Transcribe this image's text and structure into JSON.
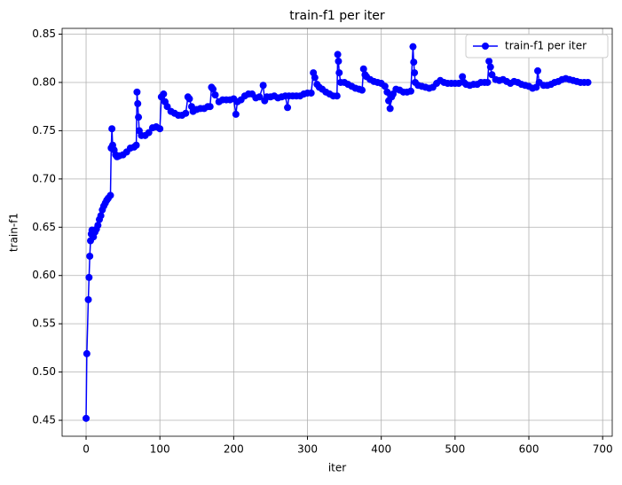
{
  "chart_data": {
    "type": "line",
    "title": "train-f1 per iter",
    "x_label": "iter",
    "y_label": "train-f1",
    "grid": true,
    "legend": "upper right",
    "xlim": [
      -32.5,
      713
    ],
    "ylim": [
      0.4335,
      0.856
    ],
    "xticks": [
      0,
      100,
      200,
      300,
      400,
      500,
      600,
      700
    ],
    "yticks": [
      0.45,
      {
        "value": 0.5,
        "label": "0.50"
      },
      0.55,
      {
        "value": 0.6,
        "label": "0.60"
      },
      0.65,
      {
        "value": 0.7,
        "label": "0.70"
      },
      0.75,
      {
        "value": 0.8,
        "label": "0.80"
      },
      0.85
    ],
    "x": [
      0,
      1,
      3,
      4,
      5,
      6,
      7,
      8,
      10,
      12,
      14,
      16,
      18,
      20,
      22,
      24,
      26,
      28,
      30,
      33,
      34,
      35,
      36,
      38,
      40,
      42,
      45,
      50,
      55,
      60,
      65,
      68,
      69,
      70,
      71,
      72,
      75,
      80,
      85,
      90,
      95,
      100,
      102,
      105,
      107,
      110,
      115,
      120,
      125,
      130,
      135,
      138,
      140,
      143,
      145,
      150,
      155,
      160,
      165,
      168,
      170,
      172,
      175,
      180,
      185,
      190,
      195,
      200,
      203,
      205,
      210,
      215,
      220,
      225,
      230,
      235,
      240,
      242,
      245,
      250,
      255,
      260,
      265,
      270,
      273,
      275,
      280,
      285,
      290,
      295,
      300,
      305,
      308,
      310,
      313,
      316,
      320,
      325,
      330,
      335,
      340,
      341,
      342,
      343,
      345,
      350,
      355,
      360,
      365,
      370,
      374,
      376,
      378,
      380,
      385,
      390,
      395,
      400,
      405,
      408,
      410,
      412,
      414,
      416,
      420,
      425,
      430,
      435,
      440,
      443,
      444,
      445,
      446,
      450,
      455,
      460,
      465,
      470,
      475,
      480,
      485,
      490,
      495,
      500,
      505,
      510,
      512,
      515,
      520,
      525,
      530,
      535,
      540,
      544,
      546,
      548,
      550,
      555,
      560,
      565,
      570,
      575,
      580,
      585,
      590,
      595,
      600,
      605,
      610,
      612,
      614,
      620,
      625,
      630,
      635,
      640,
      645,
      650,
      655,
      660,
      665,
      670,
      675,
      680
    ],
    "series": [
      {
        "name": "train-f1 per iter",
        "color": "#0000ff",
        "values": [
          0.452,
          0.519,
          0.575,
          0.598,
          0.62,
          0.636,
          0.643,
          0.647,
          0.64,
          0.645,
          0.648,
          0.652,
          0.658,
          0.662,
          0.668,
          0.672,
          0.675,
          0.678,
          0.68,
          0.683,
          0.732,
          0.752,
          0.735,
          0.73,
          0.725,
          0.723,
          0.724,
          0.725,
          0.728,
          0.732,
          0.733,
          0.735,
          0.79,
          0.778,
          0.764,
          0.75,
          0.745,
          0.745,
          0.748,
          0.753,
          0.754,
          0.752,
          0.785,
          0.788,
          0.78,
          0.775,
          0.77,
          0.768,
          0.766,
          0.766,
          0.768,
          0.785,
          0.783,
          0.775,
          0.77,
          0.772,
          0.773,
          0.773,
          0.775,
          0.775,
          0.795,
          0.793,
          0.787,
          0.78,
          0.782,
          0.782,
          0.782,
          0.783,
          0.767,
          0.78,
          0.782,
          0.786,
          0.788,
          0.788,
          0.784,
          0.785,
          0.797,
          0.781,
          0.785,
          0.785,
          0.786,
          0.784,
          0.785,
          0.786,
          0.774,
          0.786,
          0.786,
          0.786,
          0.786,
          0.788,
          0.789,
          0.789,
          0.81,
          0.805,
          0.798,
          0.795,
          0.793,
          0.79,
          0.788,
          0.786,
          0.786,
          0.829,
          0.822,
          0.81,
          0.8,
          0.8,
          0.798,
          0.796,
          0.794,
          0.793,
          0.792,
          0.814,
          0.808,
          0.806,
          0.803,
          0.801,
          0.8,
          0.799,
          0.796,
          0.79,
          0.781,
          0.773,
          0.785,
          0.788,
          0.793,
          0.792,
          0.79,
          0.79,
          0.791,
          0.837,
          0.821,
          0.81,
          0.8,
          0.797,
          0.796,
          0.795,
          0.794,
          0.795,
          0.799,
          0.802,
          0.8,
          0.799,
          0.799,
          0.799,
          0.799,
          0.806,
          0.8,
          0.798,
          0.797,
          0.798,
          0.798,
          0.8,
          0.8,
          0.8,
          0.822,
          0.816,
          0.808,
          0.803,
          0.802,
          0.803,
          0.801,
          0.799,
          0.801,
          0.8,
          0.798,
          0.797,
          0.796,
          0.794,
          0.795,
          0.812,
          0.8,
          0.797,
          0.797,
          0.798,
          0.8,
          0.801,
          0.803,
          0.804,
          0.803,
          0.802,
          0.801,
          0.8,
          0.8,
          0.8
        ]
      }
    ]
  }
}
